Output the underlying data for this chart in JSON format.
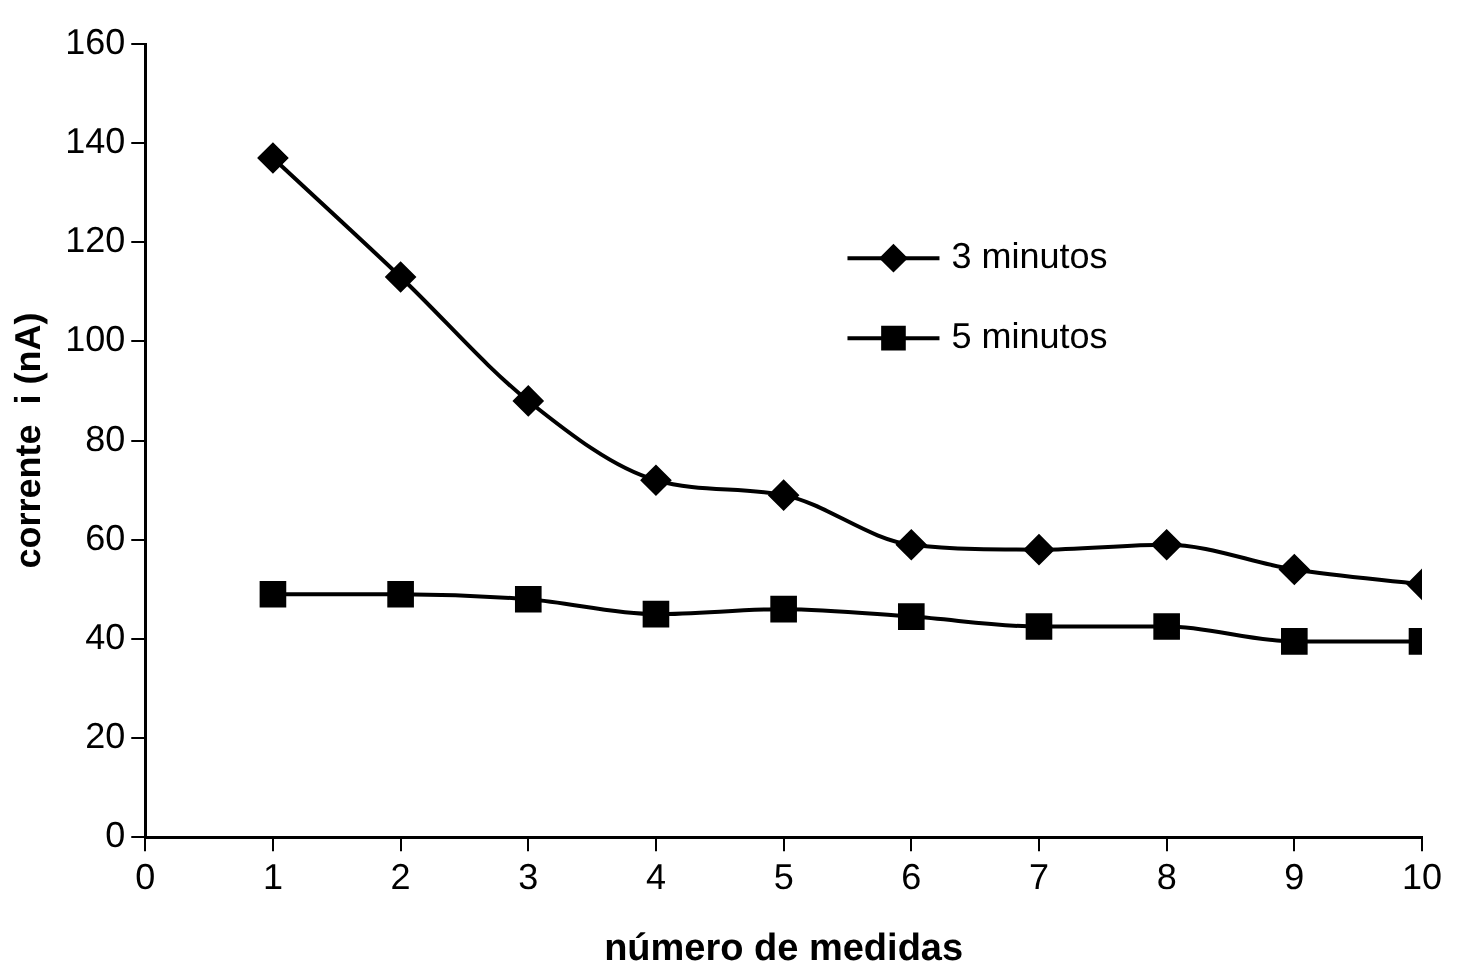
{
  "chart_data": {
    "type": "line",
    "xlabel": "número de medidas",
    "ylabel": "corrente  i (nA)",
    "x": [
      1,
      2,
      3,
      4,
      5,
      6,
      7,
      8,
      9,
      10
    ],
    "series": [
      {
        "name": "3 minutos",
        "color": "#000000",
        "marker": "diamond",
        "values": [
          137,
          113,
          88,
          72,
          69,
          59,
          58,
          59,
          54,
          51
        ]
      },
      {
        "name": "5 minutos",
        "color": "#000000",
        "marker": "square",
        "values": [
          49,
          49,
          48,
          45,
          46,
          44.5,
          42.5,
          42.5,
          39.5,
          39.5
        ]
      }
    ],
    "xlim": [
      0,
      10
    ],
    "xticks": [
      0,
      1,
      2,
      3,
      4,
      5,
      6,
      7,
      8,
      9,
      10
    ],
    "ylim": [
      0,
      160
    ],
    "yticks": [
      0,
      20,
      40,
      60,
      80,
      100,
      120,
      140,
      160
    ],
    "grid": false,
    "legend": "top right",
    "line_style": "solid"
  }
}
